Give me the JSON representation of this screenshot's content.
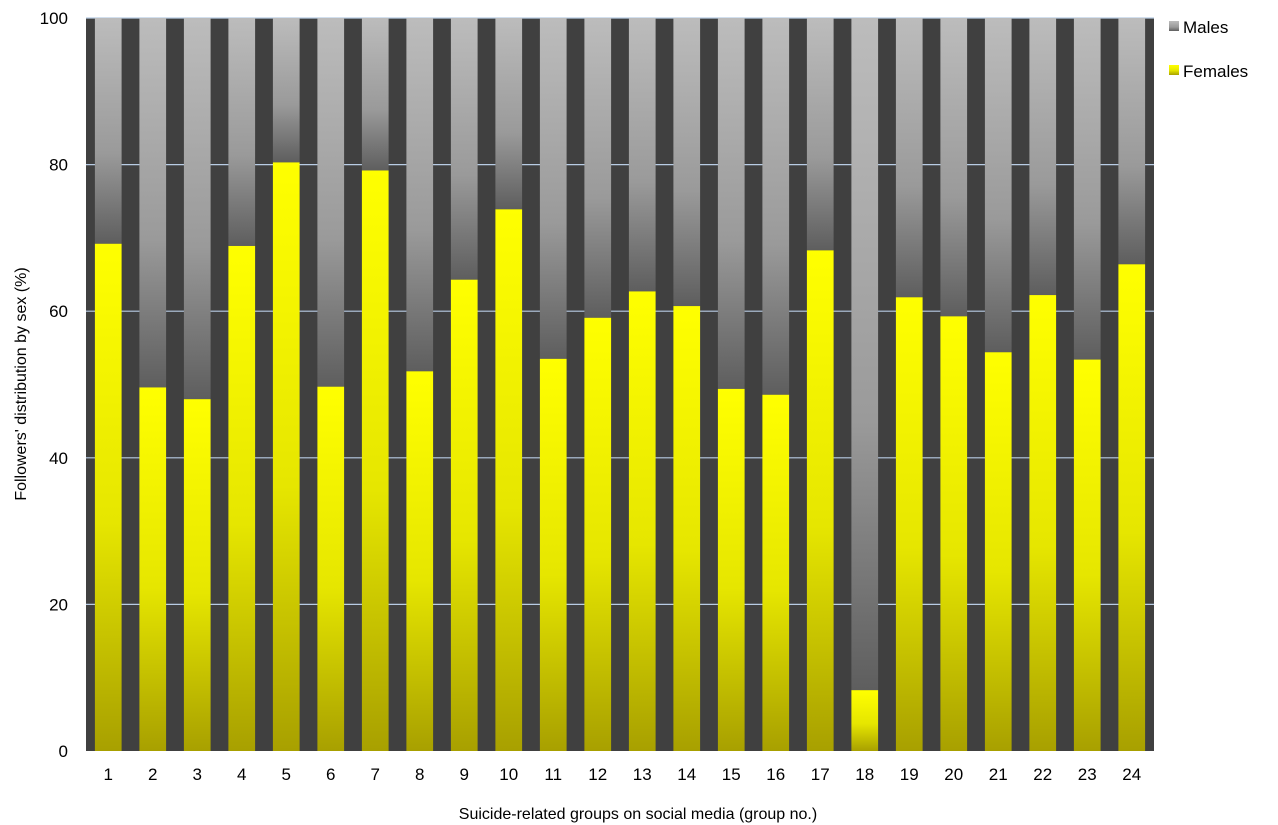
{
  "chart_data": {
    "type": "bar",
    "stacked": true,
    "categories": [
      "1",
      "2",
      "3",
      "4",
      "5",
      "6",
      "7",
      "8",
      "9",
      "10",
      "11",
      "12",
      "13",
      "14",
      "15",
      "16",
      "17",
      "18",
      "19",
      "20",
      "21",
      "22",
      "23",
      "24"
    ],
    "series": [
      {
        "name": "Females",
        "color": "#ffff00",
        "values": [
          69.2,
          49.6,
          48.0,
          68.9,
          80.3,
          49.7,
          79.2,
          51.8,
          64.3,
          73.9,
          53.5,
          59.1,
          62.7,
          60.7,
          49.4,
          48.6,
          68.3,
          8.3,
          61.9,
          59.3,
          54.4,
          62.2,
          53.4,
          66.4
        ]
      },
      {
        "name": "Males",
        "color": "#a6a6a6",
        "values": [
          30.8,
          50.4,
          52.0,
          31.1,
          19.7,
          50.3,
          20.8,
          48.2,
          35.7,
          26.1,
          46.5,
          40.9,
          37.3,
          39.3,
          50.6,
          51.4,
          31.7,
          91.7,
          38.1,
          40.7,
          45.6,
          37.8,
          46.6,
          33.6
        ]
      }
    ],
    "title": "",
    "xlabel": "Suicide-related groups on social media (group  no.)",
    "ylabel": "Followers' distribution by sex (%)",
    "ylim": [
      0,
      100
    ],
    "yticks": [
      0,
      20,
      40,
      60,
      80,
      100
    ],
    "grid": true,
    "legend": "right",
    "plot_background": "#404040"
  }
}
